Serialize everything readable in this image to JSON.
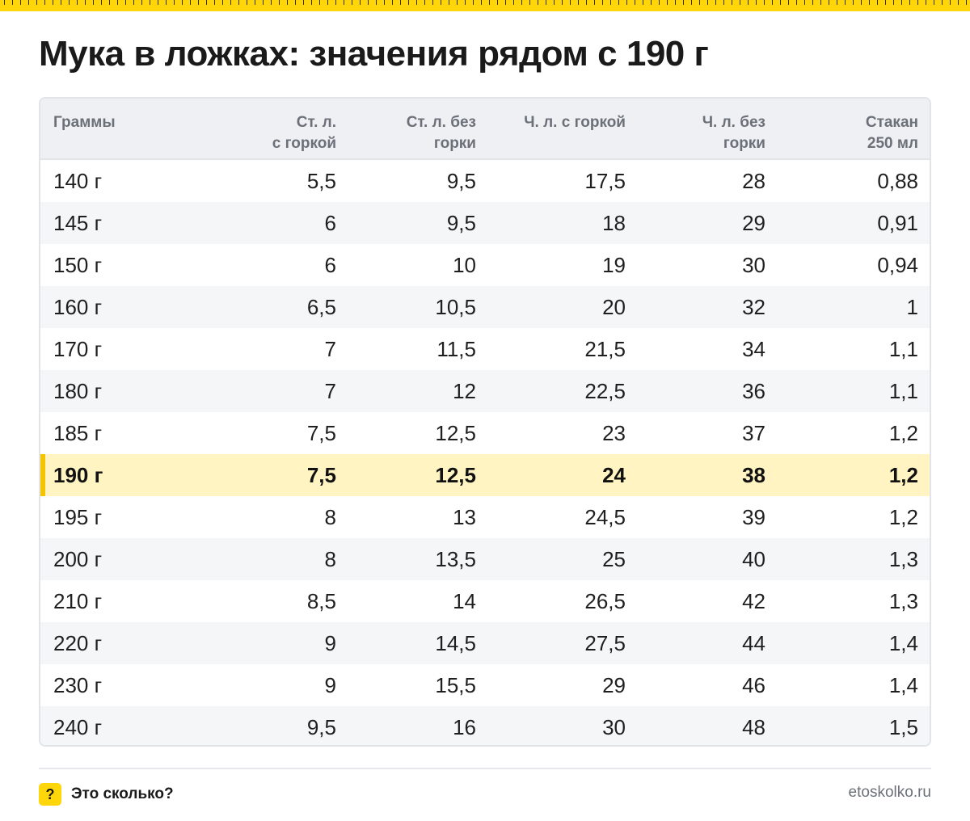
{
  "title": "Мука в ложках: значения рядом с 190 г",
  "table": {
    "headers": [
      [
        "Граммы"
      ],
      [
        "Ст. л.",
        "с горкой"
      ],
      [
        "Ст. л. без",
        "горки"
      ],
      [
        "Ч. л. с горкой"
      ],
      [
        "Ч. л. без",
        "горки"
      ],
      [
        "Стакан",
        "250 мл"
      ]
    ],
    "highlight_row": "190 г",
    "rows": [
      [
        "140 г",
        "5,5",
        "9,5",
        "17,5",
        "28",
        "0,88"
      ],
      [
        "145 г",
        "6",
        "9,5",
        "18",
        "29",
        "0,91"
      ],
      [
        "150 г",
        "6",
        "10",
        "19",
        "30",
        "0,94"
      ],
      [
        "160 г",
        "6,5",
        "10,5",
        "20",
        "32",
        "1"
      ],
      [
        "170 г",
        "7",
        "11,5",
        "21,5",
        "34",
        "1,1"
      ],
      [
        "180 г",
        "7",
        "12",
        "22,5",
        "36",
        "1,1"
      ],
      [
        "185 г",
        "7,5",
        "12,5",
        "23",
        "37",
        "1,2"
      ],
      [
        "190 г",
        "7,5",
        "12,5",
        "24",
        "38",
        "1,2"
      ],
      [
        "195 г",
        "8",
        "13",
        "24,5",
        "39",
        "1,2"
      ],
      [
        "200 г",
        "8",
        "13,5",
        "25",
        "40",
        "1,3"
      ],
      [
        "210 г",
        "8,5",
        "14",
        "26,5",
        "42",
        "1,3"
      ],
      [
        "220 г",
        "9",
        "14,5",
        "27,5",
        "44",
        "1,4"
      ],
      [
        "230 г",
        "9",
        "15,5",
        "29",
        "46",
        "1,4"
      ],
      [
        "240 г",
        "9,5",
        "16",
        "30",
        "48",
        "1,5"
      ]
    ]
  },
  "footer": {
    "icon_symbol": "?",
    "brand": "Это сколько?",
    "site": "etoskolko.ru"
  },
  "colors": {
    "accent": "#ffd60a",
    "highlight_bg": "#fff4c2",
    "highlight_bar": "#f5c400",
    "header_bg": "#eef0f3",
    "muted_text": "#6b7079"
  }
}
